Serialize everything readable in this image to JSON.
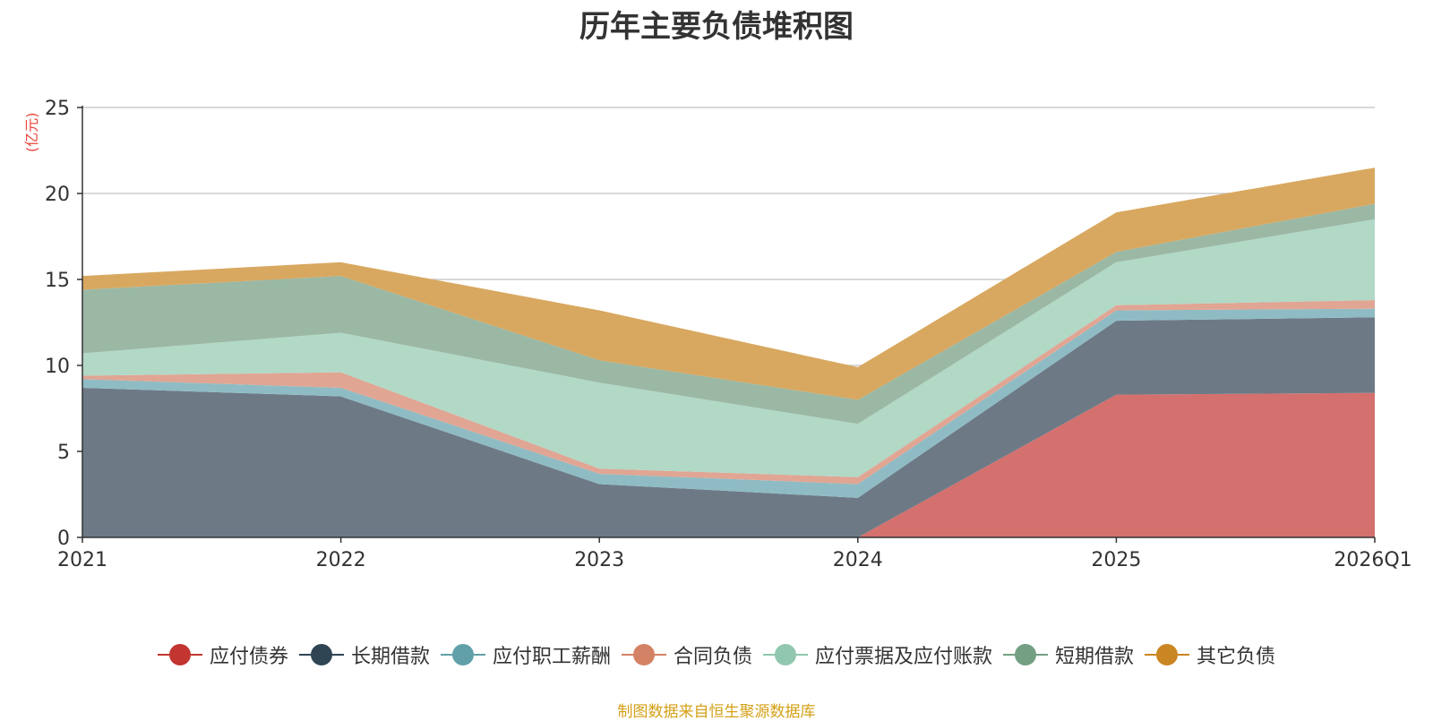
{
  "chart_data": {
    "type": "area",
    "stacked": true,
    "title": "历年主要负债堆积图",
    "unit_label": "(亿元)",
    "categories": [
      "2021",
      "2022",
      "2023",
      "2024",
      "2025",
      "2026Q1"
    ],
    "ylim": [
      0,
      25
    ],
    "yticks": [
      0,
      5,
      10,
      15,
      20,
      25
    ],
    "grid": true,
    "legend_position": "bottom",
    "series": [
      {
        "name": "应付债券",
        "color": "#c23531",
        "fill": "#d4706e",
        "values": [
          0,
          0,
          0,
          0,
          8.3,
          8.4
        ]
      },
      {
        "name": "长期借款",
        "color": "#2f4554",
        "fill": "#6d7a86",
        "values": [
          8.7,
          8.2,
          3.1,
          2.3,
          4.3,
          4.4
        ]
      },
      {
        "name": "应付职工薪酬",
        "color": "#61a0a8",
        "fill": "#8fbcc4",
        "values": [
          0.5,
          0.5,
          0.6,
          0.8,
          0.6,
          0.5
        ]
      },
      {
        "name": "合同负债",
        "color": "#d48265",
        "fill": "#e0a593",
        "values": [
          0.2,
          0.9,
          0.3,
          0.4,
          0.3,
          0.5
        ]
      },
      {
        "name": "应付票据及应付账款",
        "color": "#91c7ae",
        "fill": "#b2d8c6",
        "values": [
          1.3,
          2.3,
          5.0,
          3.1,
          2.5,
          4.7
        ]
      },
      {
        "name": "短期借款",
        "color": "#749f83",
        "fill": "#9bb8a5",
        "values": [
          3.7,
          3.3,
          1.3,
          1.4,
          0.6,
          0.9
        ]
      },
      {
        "name": "其它负债",
        "color": "#ca8622",
        "fill": "#d8a860",
        "values": [
          0.8,
          0.8,
          2.9,
          1.9,
          2.3,
          2.1
        ]
      }
    ]
  },
  "source": "制图数据来自恒生聚源数据库"
}
